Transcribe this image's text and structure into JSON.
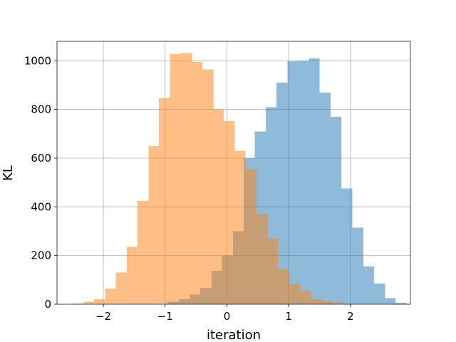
{
  "chart_data": {
    "type": "histogram",
    "title": "",
    "xlabel": "iteration",
    "ylabel": "KL",
    "xlim": [
      -2.75,
      2.97
    ],
    "ylim": [
      0,
      1080
    ],
    "xticks": [
      -2,
      -1,
      0,
      1,
      2
    ],
    "xtick_labels": [
      "−2",
      "−1",
      "0",
      "1",
      "2"
    ],
    "yticks": [
      0,
      200,
      400,
      600,
      800,
      1000
    ],
    "ytick_labels": [
      "0",
      "200",
      "400",
      "600",
      "800",
      "1000"
    ],
    "grid": true,
    "overlap_color": "#c49a78",
    "series": [
      {
        "color": "#1f77b4",
        "alpha": 0.5,
        "bins": [
          [
            -0.96,
            -0.78,
            10
          ],
          [
            -0.78,
            -0.6,
            20
          ],
          [
            -0.6,
            -0.43,
            40
          ],
          [
            -0.43,
            -0.25,
            67
          ],
          [
            -0.25,
            -0.08,
            137
          ],
          [
            -0.08,
            0.1,
            200
          ],
          [
            0.1,
            0.27,
            300
          ],
          [
            0.27,
            0.45,
            600
          ],
          [
            0.45,
            0.63,
            710
          ],
          [
            0.63,
            0.8,
            810
          ],
          [
            0.8,
            0.98,
            910
          ],
          [
            0.98,
            1.15,
            998
          ],
          [
            1.15,
            1.33,
            1000
          ],
          [
            1.33,
            1.5,
            1010
          ],
          [
            1.5,
            1.68,
            870
          ],
          [
            1.68,
            1.85,
            770
          ],
          [
            1.85,
            2.03,
            475
          ],
          [
            2.03,
            2.21,
            315
          ],
          [
            2.21,
            2.38,
            155
          ],
          [
            2.38,
            2.56,
            85
          ],
          [
            2.56,
            2.73,
            25
          ],
          [
            2.73,
            2.91,
            6
          ]
        ]
      },
      {
        "color": "#ff7f0e",
        "alpha": 0.5,
        "bins": [
          [
            -2.5,
            -2.32,
            3
          ],
          [
            -2.32,
            -2.15,
            10
          ],
          [
            -2.15,
            -1.97,
            20
          ],
          [
            -1.97,
            -1.8,
            65
          ],
          [
            -1.8,
            -1.62,
            130
          ],
          [
            -1.62,
            -1.45,
            235
          ],
          [
            -1.45,
            -1.27,
            425
          ],
          [
            -1.27,
            -1.1,
            650
          ],
          [
            -1.1,
            -0.92,
            848
          ],
          [
            -0.92,
            -0.75,
            1027
          ],
          [
            -0.75,
            -0.57,
            1032
          ],
          [
            -0.57,
            -0.4,
            995
          ],
          [
            -0.4,
            -0.22,
            965
          ],
          [
            -0.22,
            -0.05,
            800
          ],
          [
            -0.05,
            0.13,
            752
          ],
          [
            0.13,
            0.3,
            630
          ],
          [
            0.3,
            0.48,
            555
          ],
          [
            0.48,
            0.66,
            370
          ],
          [
            0.66,
            0.83,
            270
          ],
          [
            0.83,
            1.01,
            145
          ],
          [
            1.01,
            1.18,
            82
          ],
          [
            1.18,
            1.36,
            55
          ],
          [
            1.36,
            1.53,
            20
          ],
          [
            1.53,
            1.71,
            15
          ],
          [
            1.71,
            1.88,
            7
          ],
          [
            1.88,
            2.06,
            3
          ]
        ]
      }
    ]
  }
}
